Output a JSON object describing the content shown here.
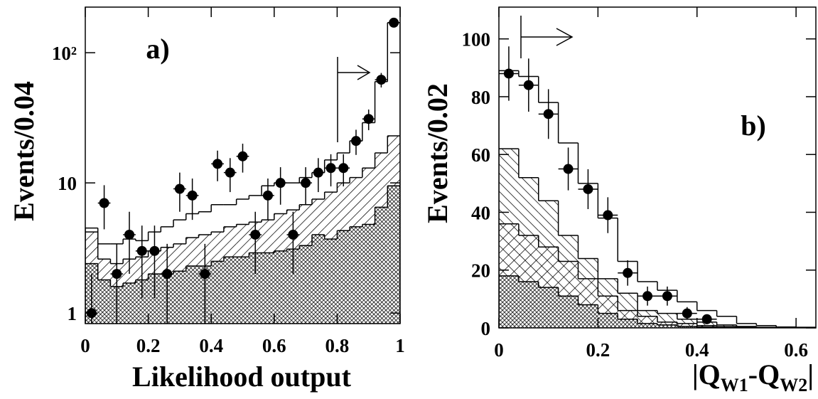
{
  "chart_data": [
    {
      "type": "histogram",
      "ylabel": "Events/0.04",
      "xlabel": "Likelihood output",
      "annotation": "a)",
      "log_y": true,
      "xlim": [
        0,
        1
      ],
      "ylim": [
        0.83,
        224
      ],
      "xticks": [
        0,
        0.2,
        0.4,
        0.6,
        0.8,
        1
      ],
      "yticks": [
        1,
        10,
        {
          "value": 100,
          "label": "10²"
        }
      ],
      "bins": [
        0,
        0.04,
        0.08,
        0.12,
        0.16,
        0.2,
        0.24,
        0.28,
        0.32,
        0.36,
        0.4,
        0.44,
        0.48,
        0.52,
        0.56,
        0.6,
        0.64,
        0.68,
        0.72,
        0.76,
        0.8,
        0.84,
        0.88,
        0.92,
        0.96,
        1
      ],
      "series": [
        {
          "color": "#000000",
          "fill": "none",
          "values": [
            4.5,
            3.4,
            3.4,
            3.7,
            3.6,
            4.2,
            4.6,
            5.2,
            5.8,
            6.0,
            6.8,
            6.8,
            7.5,
            8.0,
            9.5,
            10,
            10,
            11,
            12,
            15,
            17,
            21,
            29,
            60,
            170
          ]
        },
        {
          "color": "#000000",
          "fill": "hatch-right",
          "values": [
            4.2,
            2.6,
            2.4,
            2.6,
            2.7,
            3.0,
            3.2,
            3.4,
            3.8,
            4.0,
            4.2,
            4.6,
            4.8,
            5.0,
            5.2,
            5.8,
            6.2,
            6.8,
            7.5,
            8.5,
            10,
            11,
            13,
            17,
            23
          ]
        },
        {
          "color": "#000000",
          "fill": "dense-crosshatch",
          "values": [
            2.4,
            1.8,
            1.6,
            1.7,
            1.8,
            2.0,
            2.0,
            2.1,
            2.3,
            2.3,
            2.5,
            2.7,
            2.7,
            2.9,
            2.9,
            3.0,
            3.1,
            3.3,
            4.0,
            3.7,
            4.3,
            4.6,
            4.8,
            6.5,
            9.5
          ]
        }
      ],
      "data_points": {
        "color": "#000000",
        "x": [
          0.02,
          0.06,
          0.1,
          0.14,
          0.18,
          0.22,
          0.26,
          0.3,
          0.34,
          0.38,
          0.42,
          0.46,
          0.5,
          0.54,
          0.58,
          0.62,
          0.66,
          0.7,
          0.74,
          0.78,
          0.82,
          0.86,
          0.9,
          0.94,
          0.98
        ],
        "values": [
          1,
          7,
          2,
          4,
          3,
          3,
          2,
          9,
          8,
          2,
          14,
          12,
          16,
          4,
          8,
          10,
          4,
          10,
          12,
          13,
          13,
          21,
          31,
          62,
          170
        ],
        "errors": [
          1,
          2.6,
          1.4,
          2,
          1.7,
          1.7,
          1.4,
          3,
          2.8,
          1.4,
          3.7,
          3.5,
          4,
          2,
          2.8,
          3.2,
          2,
          3.2,
          3.5,
          3.6,
          3.6,
          4.6,
          5.6,
          7.9,
          13
        ]
      }
    },
    {
      "type": "histogram",
      "ylabel": "Events/0.02",
      "xlabel": [
        "|Q",
        "W1",
        "-Q",
        "W2",
        "|"
      ],
      "annotation": "b)",
      "log_y": false,
      "xlim": [
        0,
        0.64
      ],
      "ylim": [
        0,
        111
      ],
      "xticks": [
        0,
        0.2,
        0.4,
        0.6
      ],
      "yticks": [
        0,
        20,
        40,
        60,
        80,
        100
      ],
      "bins": [
        0,
        0.04,
        0.08,
        0.12,
        0.16,
        0.2,
        0.24,
        0.28,
        0.32,
        0.36,
        0.4,
        0.44,
        0.48,
        0.52,
        0.56,
        0.6,
        0.64
      ],
      "series": [
        {
          "color": "#000000",
          "fill": "none",
          "values": [
            89,
            87,
            78,
            64,
            50,
            38,
            23,
            16,
            13,
            9,
            6,
            4,
            1.5,
            0.8,
            0.3,
            0.2
          ]
        },
        {
          "color": "#000000",
          "fill": "hatch-left",
          "values": [
            62,
            52,
            44,
            32,
            24,
            17,
            12,
            6,
            5,
            3,
            2,
            1,
            0.5,
            0.2,
            0.1,
            0
          ]
        },
        {
          "color": "#000000",
          "fill": "crosshatch",
          "values": [
            36,
            32,
            28,
            23,
            17,
            11,
            6,
            4,
            2,
            1.5,
            0.8,
            0.5,
            0.2,
            0,
            0,
            0
          ]
        },
        {
          "color": "#000000",
          "fill": "dense-crosshatch",
          "values": [
            18,
            16,
            14,
            11,
            8,
            5,
            3,
            1.5,
            1,
            0.5,
            0.3,
            0.1,
            0,
            0,
            0,
            0
          ]
        }
      ],
      "data_points": {
        "color": "#000000",
        "x": [
          0.02,
          0.06,
          0.1,
          0.14,
          0.18,
          0.22,
          0.26,
          0.3,
          0.34,
          0.38,
          0.42
        ],
        "values": [
          88,
          84,
          74,
          55,
          48,
          39,
          19,
          11,
          11,
          5,
          3
        ],
        "errors": [
          9.4,
          9.2,
          8.6,
          7.4,
          6.9,
          6.2,
          4.4,
          3.3,
          3.3,
          2.2,
          1.7
        ]
      }
    }
  ]
}
